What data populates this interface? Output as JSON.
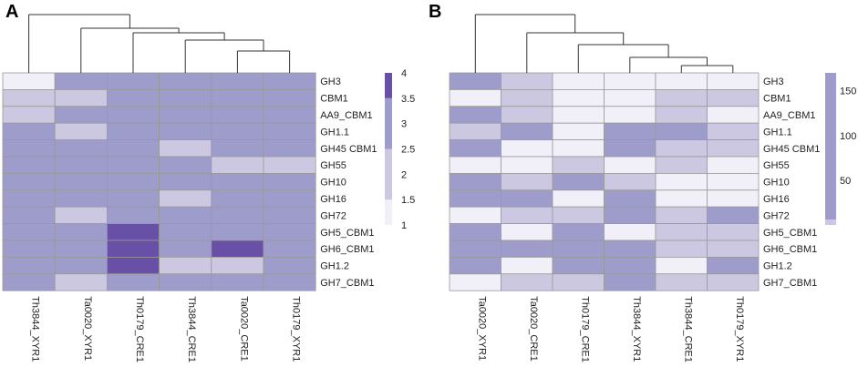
{
  "palette": {
    "1": "#f1eff7",
    "2": "#ccc8e2",
    "3": "#9e9ccb",
    "4": "#6950a7",
    "grid": "#999999"
  },
  "chart_data": [
    {
      "type": "heatmap",
      "panel": "A",
      "columns": [
        "Th3844_XYR1",
        "Ta0020_XYR1",
        "Th0179_CRE1",
        "Th3844_CRE1",
        "Ta0020_CRE1",
        "Th0179_XYR1"
      ],
      "rows": [
        "GH3",
        "CBM1",
        "AA9_CBM1",
        "GH1.1",
        "GH45 CBM1",
        "GH55",
        "GH10",
        "GH16",
        "GH72",
        "GH5_CBM1",
        "GH6_CBM1",
        "GH1.2",
        "GH7_CBM1"
      ],
      "values": [
        [
          1,
          3,
          3,
          3,
          3,
          3
        ],
        [
          2,
          2,
          3,
          3,
          3,
          3
        ],
        [
          2,
          3,
          3,
          3,
          3,
          3
        ],
        [
          3,
          2,
          3,
          3,
          3,
          3
        ],
        [
          3,
          3,
          3,
          2,
          3,
          3
        ],
        [
          3,
          3,
          3,
          3,
          2,
          2
        ],
        [
          3,
          3,
          3,
          3,
          3,
          3
        ],
        [
          3,
          3,
          3,
          2,
          3,
          3
        ],
        [
          3,
          2,
          3,
          3,
          3,
          3
        ],
        [
          3,
          3,
          4,
          3,
          3,
          3
        ],
        [
          3,
          3,
          4,
          3,
          4,
          3
        ],
        [
          3,
          3,
          4,
          2,
          2,
          3
        ],
        [
          3,
          2,
          3,
          3,
          3,
          3
        ]
      ],
      "legend": {
        "range": [
          1,
          4
        ],
        "ticks": [
          "4",
          "3.5",
          "3",
          "2.5",
          "2",
          "1.5",
          "1"
        ],
        "tick_values": [
          4,
          3.5,
          3,
          2.5,
          2,
          1.5,
          1
        ]
      },
      "dendrogram": "(0,(1,(2,(3,(4,5)))))"
    },
    {
      "type": "heatmap",
      "panel": "B",
      "columns": [
        "Ta0020_XYR1",
        "Ta0020_CRE1",
        "Th0179_CRE1",
        "Th3844_XYR1",
        "Th3844_CRE1",
        "Th0179_XYR1"
      ],
      "rows": [
        "GH3",
        "CBM1",
        "AA9_CBM1",
        "GH1.1",
        "GH45 CBM1",
        "GH55",
        "GH10",
        "GH16",
        "GH72",
        "GH5_CBM1",
        "GH6_CBM1",
        "GH1.2",
        "GH7_CBM1"
      ],
      "values": [
        [
          3,
          2,
          1,
          1,
          1,
          1
        ],
        [
          1,
          2,
          1,
          1,
          2,
          2
        ],
        [
          3,
          2,
          1,
          1,
          2,
          1
        ],
        [
          2,
          3,
          1,
          3,
          3,
          2
        ],
        [
          3,
          1,
          1,
          3,
          2,
          2
        ],
        [
          1,
          1,
          2,
          1,
          2,
          1
        ],
        [
          3,
          2,
          3,
          2,
          1,
          1
        ],
        [
          3,
          3,
          1,
          3,
          1,
          1
        ],
        [
          1,
          2,
          2,
          3,
          2,
          3
        ],
        [
          3,
          1,
          3,
          1,
          2,
          2
        ],
        [
          3,
          3,
          3,
          3,
          2,
          2
        ],
        [
          3,
          1,
          3,
          3,
          1,
          3
        ],
        [
          1,
          2,
          2,
          3,
          2,
          2
        ]
      ],
      "legend": {
        "range": [
          0,
          170
        ],
        "ticks": [
          "150",
          "100",
          "50"
        ],
        "tick_values": [
          150,
          100,
          50
        ]
      },
      "dendrogram": "(0,(1,(2,(3,(4,5)))))"
    }
  ]
}
